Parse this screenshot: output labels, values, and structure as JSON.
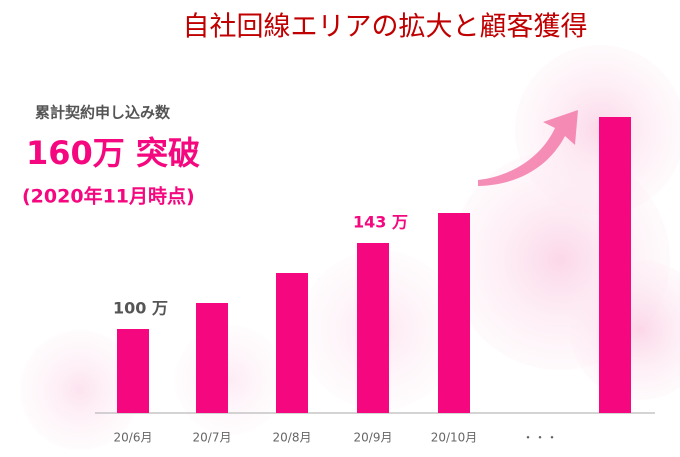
{
  "chart_data": {
    "type": "bar",
    "title": "自社回線エリアの拡大と顧客獲得",
    "annotations": [
      "累計契約申し込み数",
      "160万 突破",
      "(2020年11月時点)"
    ],
    "categories": [
      "20/6月",
      "20/7月",
      "20/8月",
      "20/9月",
      "20/10月",
      "・・・",
      null
    ],
    "values": [
      100,
      113,
      128,
      143,
      158,
      null,
      206
    ],
    "value_labels": [
      "100 万",
      null,
      null,
      "143 万",
      null,
      null,
      null
    ],
    "color": "#f5087f",
    "ylim": [
      58,
      215
    ]
  }
}
